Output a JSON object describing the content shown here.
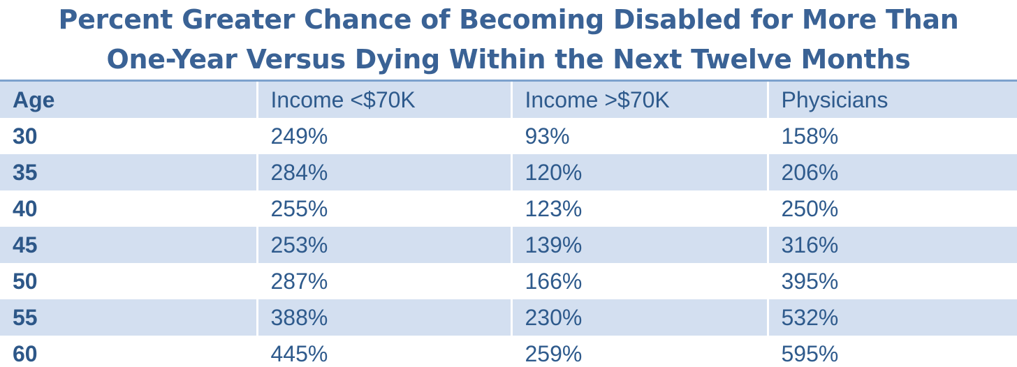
{
  "chart_data": {
    "type": "table",
    "title_lines": [
      "Percent Greater Chance of Becoming Disabled for More Than",
      "One-Year Versus Dying Within the Next Twelve Months"
    ],
    "columns": [
      "Age",
      "Income <$70K",
      "Income >$70K",
      "Physicians"
    ],
    "rows": [
      [
        "30",
        "249%",
        "93%",
        "158%"
      ],
      [
        "35",
        "284%",
        "120%",
        "206%"
      ],
      [
        "40",
        "255%",
        "123%",
        "250%"
      ],
      [
        "45",
        "253%",
        "139%",
        "316%"
      ],
      [
        "50",
        "287%",
        "166%",
        "395%"
      ],
      [
        "55",
        "388%",
        "230%",
        "532%"
      ],
      [
        "60",
        "445%",
        "259%",
        "595%"
      ]
    ],
    "colors": {
      "title": "#3a6295",
      "text": "#2e5a8c",
      "band": "#d3dff0",
      "rule": "#7da2cd"
    }
  }
}
